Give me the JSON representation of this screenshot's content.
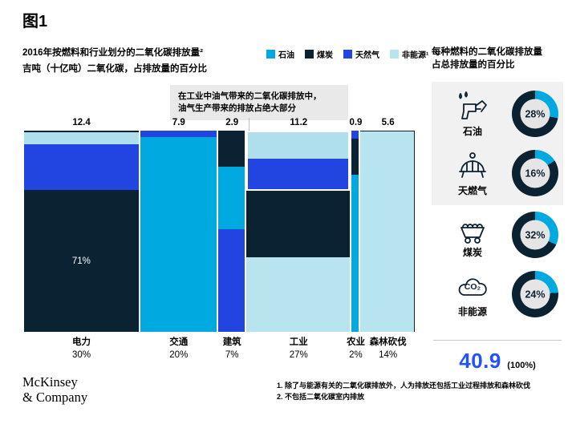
{
  "figure_label": "图1",
  "header": {
    "title": "2016年按燃料和行业划分的二氧化碳排放量²",
    "subtitle": "吉吨（十亿吨）二氧化碳，占排放量的百分比"
  },
  "legend": {
    "items": [
      {
        "label": "石油",
        "color": "#00A9E0"
      },
      {
        "label": "煤炭",
        "color": "#0B2233"
      },
      {
        "label": "天然气",
        "color": "#2244E0"
      },
      {
        "label": "非能源¹",
        "color": "#B7E4EF"
      }
    ]
  },
  "annotation": {
    "line1": "在工业中油气带来的二氧化碳排放中，",
    "line2": "油气生产带来的排放占绝大部分"
  },
  "chart_data": {
    "type": "marimekko",
    "title": "2016年按燃料和行业划分的二氧化碳排放量",
    "unit": "吉吨（十亿吨）二氧化碳，占排放量的百分比",
    "total_gigatons": "40.9",
    "columns": [
      {
        "category": "电力",
        "total": "12.4",
        "share_label": "30%",
        "share_pct": 30,
        "border_top": true,
        "segments": [
          {
            "fuel": "石油",
            "pct": 6,
            "color": "#AFDFEC"
          },
          {
            "fuel": "天然气",
            "pct": 23,
            "color": "#2244E0"
          },
          {
            "fuel": "煤炭",
            "pct": 71,
            "color": "#0B2233",
            "label": "71%"
          }
        ]
      },
      {
        "category": "交通",
        "total": "7.9",
        "share_label": "20%",
        "share_pct": 20,
        "segments": [
          {
            "fuel": "天然气",
            "pct": 3,
            "color": "#2244E0"
          },
          {
            "fuel": "石油",
            "pct": 97,
            "color": "#00A9E0"
          }
        ]
      },
      {
        "category": "建筑",
        "total": "2.9",
        "share_label": "7%",
        "share_pct": 7,
        "segments": [
          {
            "fuel": "煤炭",
            "pct": 18,
            "color": "#0B2233"
          },
          {
            "fuel": "石油",
            "pct": 31,
            "color": "#00A9E0"
          },
          {
            "fuel": "天然气",
            "pct": 51,
            "color": "#2244E0"
          }
        ]
      },
      {
        "category": "工业",
        "total": "11.2",
        "share_label": "27%",
        "share_pct": 27,
        "highlight_segments": 2,
        "segments": [
          {
            "fuel": "石油",
            "pct": 14,
            "color": "#AFDFEC"
          },
          {
            "fuel": "天然气",
            "pct": 16,
            "color": "#2244E0"
          },
          {
            "fuel": "煤炭",
            "pct": 33,
            "color": "#0B2233"
          },
          {
            "fuel": "非能源",
            "pct": 37,
            "color": "#B7E4EF"
          }
        ]
      },
      {
        "category": "农业",
        "total": "0.9",
        "share_label": "2%",
        "share_pct": 2,
        "segments": [
          {
            "fuel": "天然气",
            "pct": 4,
            "color": "#2244E0"
          },
          {
            "fuel": "煤炭",
            "pct": 18,
            "color": "#0B2233"
          },
          {
            "fuel": "石油",
            "pct": 78,
            "color": "#00A9E0"
          }
        ]
      },
      {
        "category": "森林砍伐",
        "total": "5.6",
        "share_label": "14%",
        "share_pct": 14,
        "border_dark": true,
        "segments": [
          {
            "fuel": "非能源",
            "pct": 100,
            "color": "#B7E4EF"
          }
        ]
      }
    ]
  },
  "right_panel": {
    "title_line1": "每种燃料的二氧化碳排放量",
    "title_line2": "占总排放量的百分比",
    "donuts": [
      {
        "label": "石油",
        "pct": 28,
        "icon": "fuel-pump-icon"
      },
      {
        "label": "天燃气",
        "pct": 16,
        "icon": "gas-burner-icon"
      },
      {
        "label": "煤炭",
        "pct": 32,
        "icon": "coal-cart-icon"
      },
      {
        "label": "非能源",
        "pct": 24,
        "icon": "co2-cloud-icon",
        "icon_text": "CO₂"
      }
    ],
    "total_value": "40.9",
    "total_suffix": "(100%)"
  },
  "footnotes": [
    "1. 除了与能源有关的二氧化碳排放外，人为排放还包括工业过程排放和森林砍伐",
    "2. 不包括二氧化碳室内排放"
  ],
  "logo": {
    "line1": "McKinsey",
    "line2": "& Company"
  },
  "colors": {
    "oil_bright": "#00A9E0",
    "coal_dark": "#0B2233",
    "gas_blue": "#2244E0",
    "non_energy_pale": "#B7E4EF",
    "oil_pale": "#AFDFEC",
    "donut_arc": "#00A9E0",
    "donut_rest": "#0B2233",
    "total_blue": "#2251FF",
    "annotation_bg": "#E9E9E9",
    "panel_gray": "#F1F1F1"
  }
}
